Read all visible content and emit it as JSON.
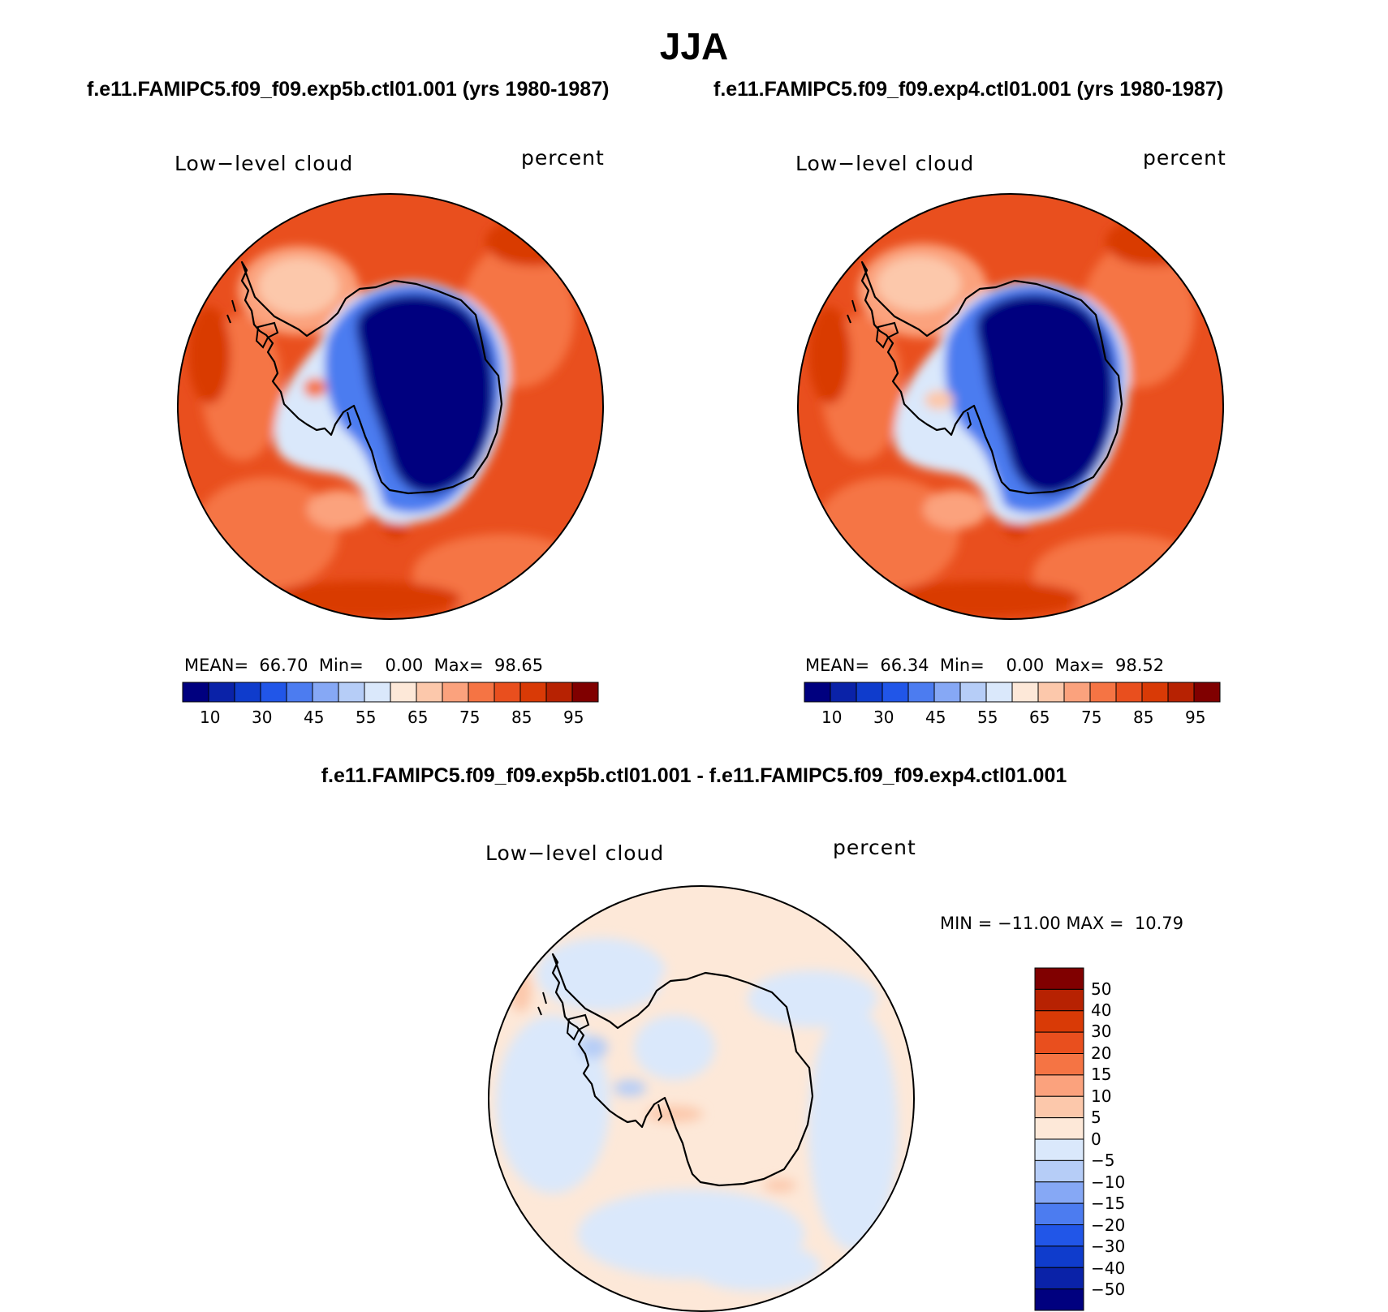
{
  "header": {
    "title": "JJA",
    "left_subtitle": "f.e11.FAMIPC5.f09_f09.exp5b.ctl01.001 (yrs 1980-1987)",
    "right_subtitle": "f.e11.FAMIPC5.f09_f09.exp4.ctl01.001 (yrs 1980-1987)",
    "diff_title": "f.e11.FAMIPC5.f09_f09.exp5b.ctl01.001 - f.e11.FAMIPC5.f09_f09.exp4.ctl01.001"
  },
  "panels": {
    "left": {
      "variable": "Low−level cloud",
      "units": "percent",
      "mean_label": "MEAN=",
      "mean": "66.70",
      "min_label": "Min=",
      "min": "0.00",
      "max_label": "Max=",
      "max": "98.65"
    },
    "right": {
      "variable": "Low−level cloud",
      "units": "percent",
      "mean_label": "MEAN=",
      "mean": "66.34",
      "min_label": "Min=",
      "min": "0.00",
      "max_label": "Max=",
      "max": "98.52"
    },
    "diff": {
      "variable": "Low−level cloud",
      "units": "percent",
      "minmax": "MIN = −11.00 MAX =  10.79"
    }
  },
  "colorbar_abs": {
    "colors": [
      "#00007f",
      "#0a22a8",
      "#0f3ccc",
      "#2156e8",
      "#4c7cf0",
      "#86a8f5",
      "#b6cdf7",
      "#dae8fb",
      "#fde8d8",
      "#fcc8ab",
      "#fba27d",
      "#f57444",
      "#e94f1e",
      "#d93a06",
      "#b72202",
      "#800000"
    ],
    "tick_labels": [
      "10",
      "30",
      "45",
      "55",
      "65",
      "75",
      "85",
      "95"
    ]
  },
  "colorbar_diff": {
    "colors": [
      "#800000",
      "#b72202",
      "#d93a06",
      "#e94f1e",
      "#f57444",
      "#fba27d",
      "#fcc8ab",
      "#fde8d8",
      "#dae8fb",
      "#b6cdf7",
      "#86a8f5",
      "#4c7cf0",
      "#2156e8",
      "#0f3ccc",
      "#0a22a8",
      "#00007f"
    ],
    "tick_labels": [
      "50",
      "40",
      "30",
      "20",
      "15",
      "10",
      "5",
      "0",
      "−5",
      "−10",
      "−15",
      "−20",
      "−30",
      "−40",
      "−50"
    ]
  }
}
